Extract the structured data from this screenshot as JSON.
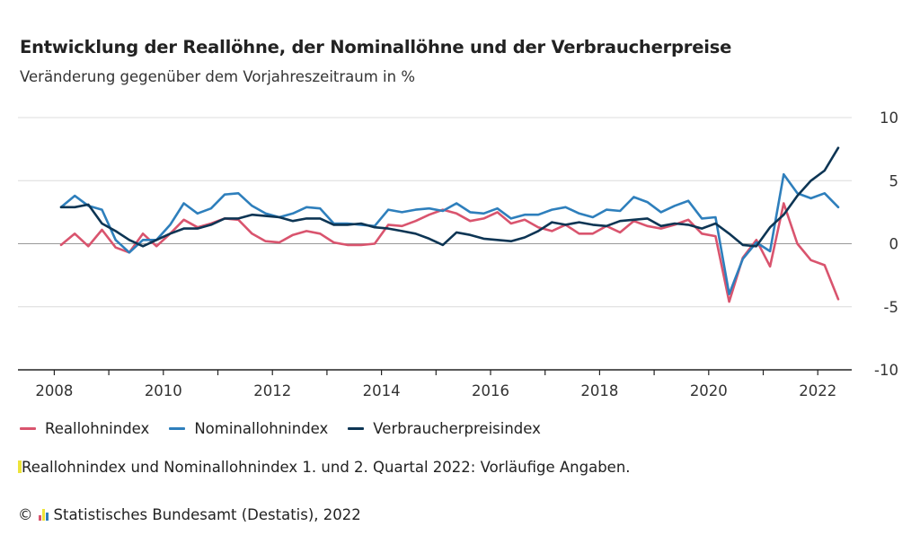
{
  "header": {
    "title": "Entwicklung der Reallöhne, der Nominallöhne und der Verbraucherpreise",
    "subtitle": "Veränderung gegenüber dem Vorjahreszeitraum in %"
  },
  "legend": {
    "items": [
      {
        "label": "Reallohnindex",
        "color": "#d9546e"
      },
      {
        "label": "Nominallohnindex",
        "color": "#2e7fbc"
      },
      {
        "label": "Verbraucherpreisindex",
        "color": "#0d3554"
      }
    ]
  },
  "footer": {
    "note": "Reallohnindex und Nominallohnindex 1. und 2. Quartal 2022: Vorläufige Angaben.",
    "copyright_symbol": "©",
    "source": "Statistisches Bundesamt (Destatis), 2022",
    "logo_colors": [
      "#d9546e",
      "#ede43a",
      "#2e7fbc"
    ]
  },
  "chart_data": {
    "type": "line",
    "x_ticks": [
      "2008",
      "2010",
      "2012",
      "2014",
      "2016",
      "2018",
      "2020",
      "2022"
    ],
    "y_ticks": [
      "10",
      "5",
      "0",
      "-5",
      "-10"
    ],
    "ylim": [
      -10,
      10
    ],
    "grid": true,
    "legend_placement": "bottom",
    "x": [
      "2008 Q1",
      "2008 Q2",
      "2008 Q3",
      "2008 Q4",
      "2009 Q1",
      "2009 Q2",
      "2009 Q3",
      "2009 Q4",
      "2010 Q1",
      "2010 Q2",
      "2010 Q3",
      "2010 Q4",
      "2011 Q1",
      "2011 Q2",
      "2011 Q3",
      "2011 Q4",
      "2012 Q1",
      "2012 Q2",
      "2012 Q3",
      "2012 Q4",
      "2013 Q1",
      "2013 Q2",
      "2013 Q3",
      "2013 Q4",
      "2014 Q1",
      "2014 Q2",
      "2014 Q3",
      "2014 Q4",
      "2015 Q1",
      "2015 Q2",
      "2015 Q3",
      "2015 Q4",
      "2016 Q1",
      "2016 Q2",
      "2016 Q3",
      "2016 Q4",
      "2017 Q1",
      "2017 Q2",
      "2017 Q3",
      "2017 Q4",
      "2018 Q1",
      "2018 Q2",
      "2018 Q3",
      "2018 Q4",
      "2019 Q1",
      "2019 Q2",
      "2019 Q3",
      "2019 Q4",
      "2020 Q1",
      "2020 Q2",
      "2020 Q3",
      "2020 Q4",
      "2021 Q1",
      "2021 Q2",
      "2021 Q3",
      "2021 Q4",
      "2022 Q1",
      "2022 Q2"
    ],
    "series": [
      {
        "name": "Reallohnindex",
        "color": "#d9546e",
        "values": [
          -0.1,
          0.8,
          -0.2,
          1.1,
          -0.3,
          -0.7,
          0.8,
          -0.2,
          0.8,
          1.9,
          1.3,
          1.6,
          2.0,
          1.9,
          0.8,
          0.2,
          0.1,
          0.7,
          1.0,
          0.8,
          0.1,
          -0.1,
          -0.1,
          0.0,
          1.5,
          1.4,
          1.8,
          2.3,
          2.7,
          2.4,
          1.8,
          2.0,
          2.5,
          1.6,
          1.9,
          1.3,
          1.0,
          1.5,
          0.8,
          0.8,
          1.4,
          0.9,
          1.8,
          1.4,
          1.2,
          1.5,
          1.9,
          0.8,
          0.6,
          -4.6,
          -1.1,
          0.3,
          -1.8,
          3.2,
          0.0,
          -1.3,
          -1.7,
          -4.4
        ]
      },
      {
        "name": "Nominallohnindex",
        "color": "#2e7fbc",
        "values": [
          2.9,
          3.8,
          3.0,
          2.7,
          0.3,
          -0.7,
          0.3,
          0.3,
          1.5,
          3.2,
          2.4,
          2.8,
          3.9,
          4.0,
          3.0,
          2.4,
          2.1,
          2.4,
          2.9,
          2.8,
          1.6,
          1.6,
          1.5,
          1.4,
          2.7,
          2.5,
          2.7,
          2.8,
          2.6,
          3.2,
          2.5,
          2.4,
          2.8,
          2.0,
          2.3,
          2.3,
          2.7,
          2.9,
          2.4,
          2.1,
          2.7,
          2.6,
          3.7,
          3.3,
          2.5,
          3.0,
          3.4,
          2.0,
          2.1,
          -4.0,
          -1.2,
          0.1,
          -0.6,
          5.5,
          4.0,
          3.6,
          4.0,
          2.9
        ]
      },
      {
        "name": "Verbraucherpreisindex",
        "color": "#0d3554",
        "values": [
          2.9,
          2.9,
          3.1,
          1.6,
          1.0,
          0.3,
          -0.2,
          0.3,
          0.8,
          1.2,
          1.2,
          1.5,
          2.0,
          2.0,
          2.3,
          2.2,
          2.1,
          1.8,
          2.0,
          2.0,
          1.5,
          1.5,
          1.6,
          1.3,
          1.2,
          1.0,
          0.8,
          0.4,
          -0.1,
          0.9,
          0.7,
          0.4,
          0.3,
          0.2,
          0.5,
          1.0,
          1.7,
          1.5,
          1.7,
          1.5,
          1.4,
          1.8,
          1.9,
          2.0,
          1.4,
          1.6,
          1.5,
          1.2,
          1.6,
          0.8,
          -0.1,
          -0.2,
          1.3,
          2.3,
          3.8,
          5.0,
          5.8,
          7.6
        ]
      }
    ]
  }
}
